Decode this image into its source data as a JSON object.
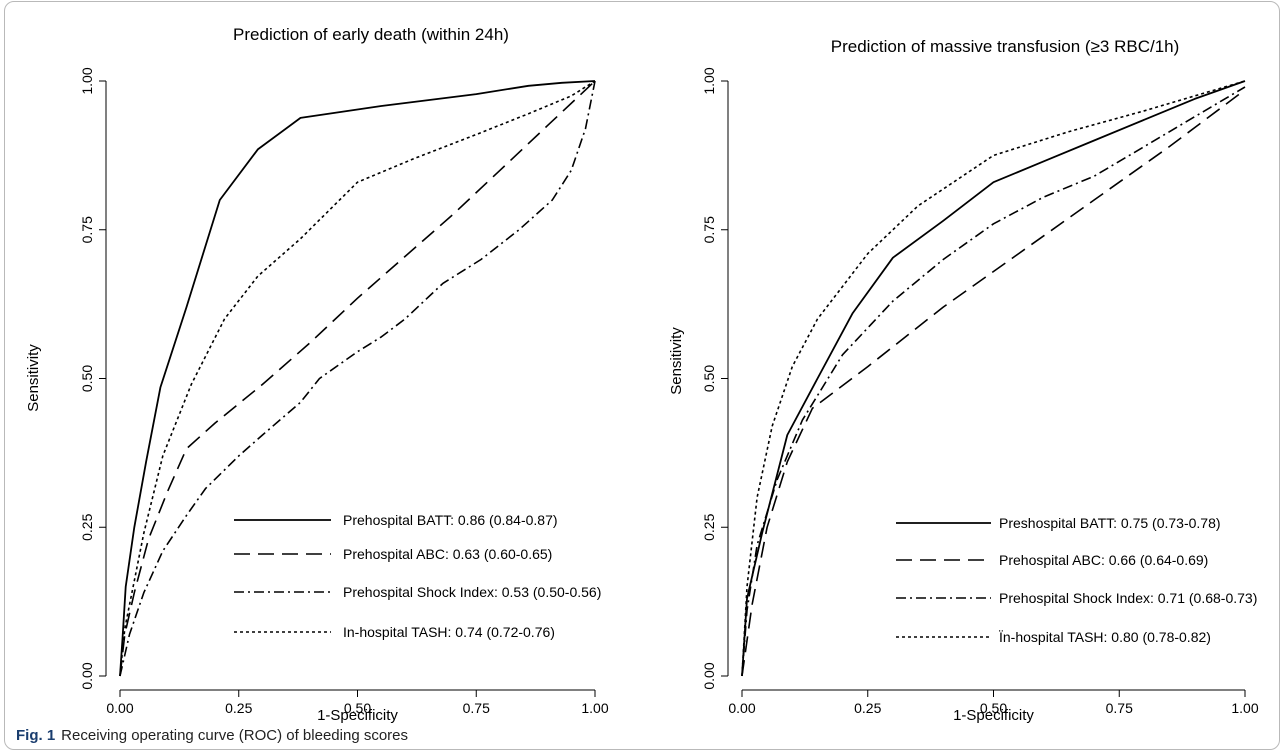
{
  "figure": {
    "caption_label": "Fig. 1",
    "caption_text": "Receiving operating curve (ROC) of bleeding scores"
  },
  "chart_data": [
    {
      "type": "line",
      "title": "Prediction of early death (within 24h)",
      "xlabel": "1-Specificity",
      "ylabel": "Sensitivity",
      "xlim": [
        0,
        1
      ],
      "ylim": [
        0,
        1
      ],
      "xticks": [
        "0.00",
        "0.25",
        "0.50",
        "0.75",
        "1.00"
      ],
      "yticks": [
        "0.00",
        "0.25",
        "0.50",
        "0.75",
        "1.00"
      ],
      "grid": false,
      "legend_position": "bottom-right",
      "series": [
        {
          "name": "Prehospital BATT: 0.86 (0.84-0.87)",
          "line_style": "solid",
          "points": [
            [
              0,
              0
            ],
            [
              0.005,
              0.06
            ],
            [
              0.012,
              0.15
            ],
            [
              0.03,
              0.25
            ],
            [
              0.055,
              0.36
            ],
            [
              0.085,
              0.485
            ],
            [
              0.14,
              0.62
            ],
            [
              0.21,
              0.8
            ],
            [
              0.29,
              0.885
            ],
            [
              0.38,
              0.938
            ],
            [
              0.55,
              0.958
            ],
            [
              0.75,
              0.978
            ],
            [
              0.86,
              0.992
            ],
            [
              0.93,
              0.997
            ],
            [
              1,
              1
            ]
          ]
        },
        {
          "name": "Prehospital ABC: 0.63 (0.60-0.65)",
          "line_style": "dashed",
          "points": [
            [
              0,
              0
            ],
            [
              0.01,
              0.07
            ],
            [
              0.03,
              0.14
            ],
            [
              0.06,
              0.23
            ],
            [
              0.1,
              0.31
            ],
            [
              0.14,
              0.382
            ],
            [
              0.2,
              0.425
            ],
            [
              0.3,
              0.49
            ],
            [
              0.4,
              0.56
            ],
            [
              0.5,
              0.635
            ],
            [
              0.6,
              0.705
            ],
            [
              0.7,
              0.775
            ],
            [
              0.8,
              0.85
            ],
            [
              0.9,
              0.925
            ],
            [
              1,
              1
            ]
          ]
        },
        {
          "name": "Prehospital Shock Index: 0.53 (0.50-0.56)",
          "line_style": "dashdot",
          "points": [
            [
              0,
              0
            ],
            [
              0.02,
              0.07
            ],
            [
              0.05,
              0.14
            ],
            [
              0.09,
              0.21
            ],
            [
              0.14,
              0.27
            ],
            [
              0.18,
              0.315
            ],
            [
              0.25,
              0.37
            ],
            [
              0.3,
              0.405
            ],
            [
              0.38,
              0.46
            ],
            [
              0.42,
              0.5
            ],
            [
              0.5,
              0.545
            ],
            [
              0.55,
              0.57
            ],
            [
              0.6,
              0.6
            ],
            [
              0.68,
              0.66
            ],
            [
              0.76,
              0.7
            ],
            [
              0.84,
              0.75
            ],
            [
              0.91,
              0.8
            ],
            [
              0.95,
              0.85
            ],
            [
              0.98,
              0.92
            ],
            [
              1,
              1
            ]
          ]
        },
        {
          "name": "In-hospital TASH: 0.74 (0.72-0.76)",
          "line_style": "dotted",
          "points": [
            [
              0,
              0
            ],
            [
              0.01,
              0.08
            ],
            [
              0.03,
              0.16
            ],
            [
              0.05,
              0.24
            ],
            [
              0.09,
              0.37
            ],
            [
              0.15,
              0.49
            ],
            [
              0.22,
              0.6
            ],
            [
              0.29,
              0.672
            ],
            [
              0.38,
              0.735
            ],
            [
              0.5,
              0.83
            ],
            [
              0.62,
              0.87
            ],
            [
              0.75,
              0.91
            ],
            [
              0.86,
              0.945
            ],
            [
              0.95,
              0.975
            ],
            [
              1,
              1
            ]
          ]
        }
      ]
    },
    {
      "type": "line",
      "title": "Prediction of massive transfusion (≥3 RBC/1h)",
      "xlabel": "1-Specificity",
      "ylabel": "Sensitivity",
      "xlim": [
        0,
        1
      ],
      "ylim": [
        0,
        1
      ],
      "xticks": [
        "0.00",
        "0.25",
        "0.50",
        "0.75",
        "1.00"
      ],
      "yticks": [
        "0.00",
        "0.25",
        "0.50",
        "0.75",
        "1.00"
      ],
      "grid": false,
      "legend_position": "bottom-right",
      "series": [
        {
          "name": "Preshospital BATT: 0.75 (0.73-0.78)",
          "line_style": "solid",
          "points": [
            [
              0,
              0
            ],
            [
              0.01,
              0.13
            ],
            [
              0.04,
              0.24
            ],
            [
              0.09,
              0.405
            ],
            [
              0.15,
              0.5
            ],
            [
              0.22,
              0.61
            ],
            [
              0.3,
              0.703
            ],
            [
              0.4,
              0.765
            ],
            [
              0.5,
              0.83
            ],
            [
              0.6,
              0.865
            ],
            [
              0.7,
              0.9
            ],
            [
              0.8,
              0.935
            ],
            [
              0.9,
              0.97
            ],
            [
              1,
              1
            ]
          ]
        },
        {
          "name": "Prehospital ABC: 0.66 (0.64-0.69)",
          "line_style": "dashed",
          "points": [
            [
              0,
              0
            ],
            [
              0.02,
              0.12
            ],
            [
              0.05,
              0.25
            ],
            [
              0.09,
              0.36
            ],
            [
              0.14,
              0.45
            ],
            [
              0.25,
              0.52
            ],
            [
              0.4,
              0.62
            ],
            [
              0.55,
              0.71
            ],
            [
              0.7,
              0.8
            ],
            [
              0.85,
              0.89
            ],
            [
              1,
              0.985
            ]
          ]
        },
        {
          "name": "Prehospital Shock Index: 0.71 (0.68-0.73)",
          "line_style": "dashdot",
          "points": [
            [
              0,
              0
            ],
            [
              0.01,
              0.11
            ],
            [
              0.03,
              0.22
            ],
            [
              0.07,
              0.33
            ],
            [
              0.12,
              0.43
            ],
            [
              0.2,
              0.54
            ],
            [
              0.3,
              0.63
            ],
            [
              0.4,
              0.7
            ],
            [
              0.5,
              0.76
            ],
            [
              0.6,
              0.805
            ],
            [
              0.7,
              0.84
            ],
            [
              0.8,
              0.89
            ],
            [
              0.9,
              0.94
            ],
            [
              1,
              0.99
            ]
          ]
        },
        {
          "name": "Ïn-hospital TASH: 0.80 (0.78-0.82)",
          "line_style": "dotted",
          "points": [
            [
              0,
              0
            ],
            [
              0.01,
              0.15
            ],
            [
              0.03,
              0.3
            ],
            [
              0.06,
              0.42
            ],
            [
              0.1,
              0.52
            ],
            [
              0.15,
              0.6
            ],
            [
              0.25,
              0.71
            ],
            [
              0.35,
              0.79
            ],
            [
              0.5,
              0.875
            ],
            [
              0.65,
              0.915
            ],
            [
              0.8,
              0.95
            ],
            [
              0.9,
              0.975
            ],
            [
              1,
              1
            ]
          ]
        }
      ]
    }
  ]
}
